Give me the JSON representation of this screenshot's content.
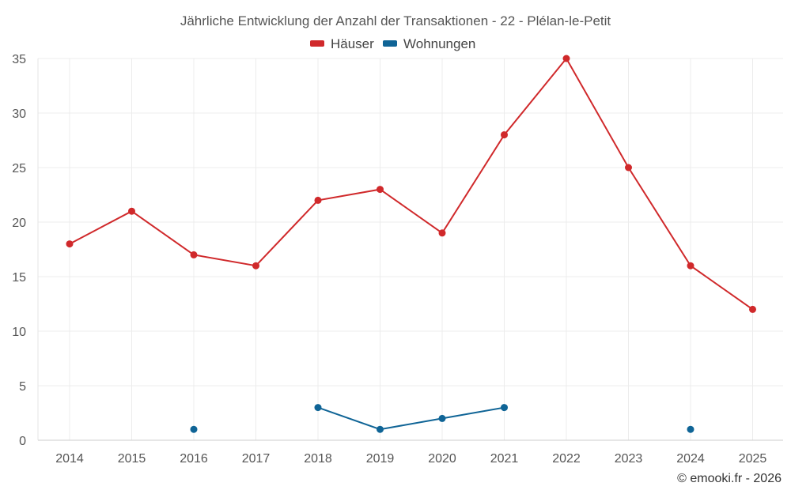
{
  "chart_data": {
    "type": "line",
    "title": "Jährliche Entwicklung der Anzahl der Transaktionen - 22 - Plélan-le-Petit",
    "categories": [
      "2014",
      "2015",
      "2016",
      "2017",
      "2018",
      "2019",
      "2020",
      "2021",
      "2022",
      "2023",
      "2024",
      "2025"
    ],
    "series": [
      {
        "name": "Häuser",
        "color": "#d0292b",
        "values": [
          18,
          21,
          17,
          16,
          22,
          23,
          19,
          28,
          35,
          25,
          16,
          12
        ]
      },
      {
        "name": "Wohnungen",
        "color": "#0f6496",
        "values": [
          null,
          null,
          1,
          null,
          3,
          1,
          2,
          3,
          null,
          null,
          1,
          null
        ]
      }
    ],
    "ylim": [
      0,
      35
    ],
    "yticks": [
      0,
      5,
      10,
      15,
      20,
      25,
      30,
      35
    ],
    "grid": true,
    "legend": "top-center",
    "credit": "© emooki.fr - 2026"
  }
}
